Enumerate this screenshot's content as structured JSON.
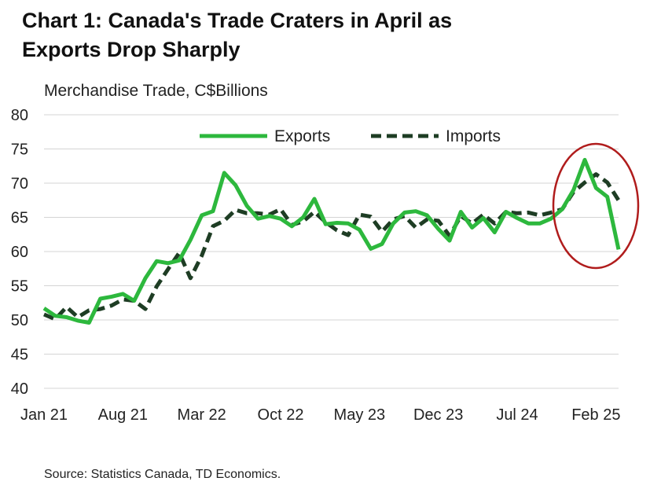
{
  "chart_data": {
    "type": "line",
    "title_line1": "Chart 1: Canada's Trade Craters in April as",
    "title_line2": "Exports Drop Sharply",
    "ylabel": "Merchandise Trade, C$Billions",
    "source": "Source: Statistics Canada, TD Economics.",
    "ylim": [
      40,
      80
    ],
    "yticks": [
      40,
      45,
      50,
      55,
      60,
      65,
      70,
      75,
      80
    ],
    "grid": true,
    "legend_position": "top-right",
    "x_start": "Jan 21",
    "x_count": 52,
    "xtick_labels": [
      {
        "index": 0,
        "label": "Jan 21"
      },
      {
        "index": 7,
        "label": "Aug 21"
      },
      {
        "index": 14,
        "label": "Mar 22"
      },
      {
        "index": 21,
        "label": "Oct 22"
      },
      {
        "index": 28,
        "label": "May 23"
      },
      {
        "index": 35,
        "label": "Dec 23"
      },
      {
        "index": 42,
        "label": "Jul 24"
      },
      {
        "index": 49,
        "label": "Feb 25"
      }
    ],
    "series": [
      {
        "name": "Exports",
        "color": "#2db83d",
        "style": "solid",
        "values": [
          51.7,
          50.6,
          50.4,
          49.9,
          49.6,
          53.1,
          53.4,
          53.8,
          52.8,
          56.1,
          58.6,
          58.3,
          58.7,
          61.7,
          65.3,
          65.9,
          71.5,
          69.7,
          66.7,
          64.8,
          65.2,
          64.8,
          63.7,
          65.0,
          67.7,
          64.0,
          64.2,
          64.1,
          63.2,
          60.4,
          61.1,
          64.1,
          65.7,
          65.9,
          65.3,
          63.3,
          61.6,
          65.8,
          63.5,
          64.9,
          62.8,
          65.8,
          64.9,
          64.1,
          64.1,
          64.8,
          66.2,
          69.0,
          73.4,
          69.3,
          68.0,
          60.3
        ]
      },
      {
        "name": "Imports",
        "color": "#1e3d24",
        "style": "dashed",
        "values": [
          50.8,
          50.1,
          51.9,
          50.4,
          51.4,
          51.6,
          52.1,
          53.0,
          52.8,
          51.6,
          54.9,
          57.4,
          59.8,
          56.1,
          59.4,
          63.7,
          64.5,
          66.1,
          65.6,
          65.6,
          65.4,
          66.2,
          63.9,
          64.4,
          65.8,
          64.3,
          63.1,
          62.4,
          65.4,
          65.1,
          62.9,
          64.7,
          65.2,
          63.5,
          64.7,
          64.5,
          62.3,
          65.2,
          64.1,
          65.4,
          64.1,
          65.8,
          65.6,
          65.7,
          65.3,
          65.7,
          66.2,
          68.7,
          70.1,
          71.3,
          70.1,
          67.5
        ]
      }
    ],
    "annotation": {
      "type": "ellipse",
      "color": "#b01c1c",
      "highlights": "Feb 25 to latest"
    }
  }
}
